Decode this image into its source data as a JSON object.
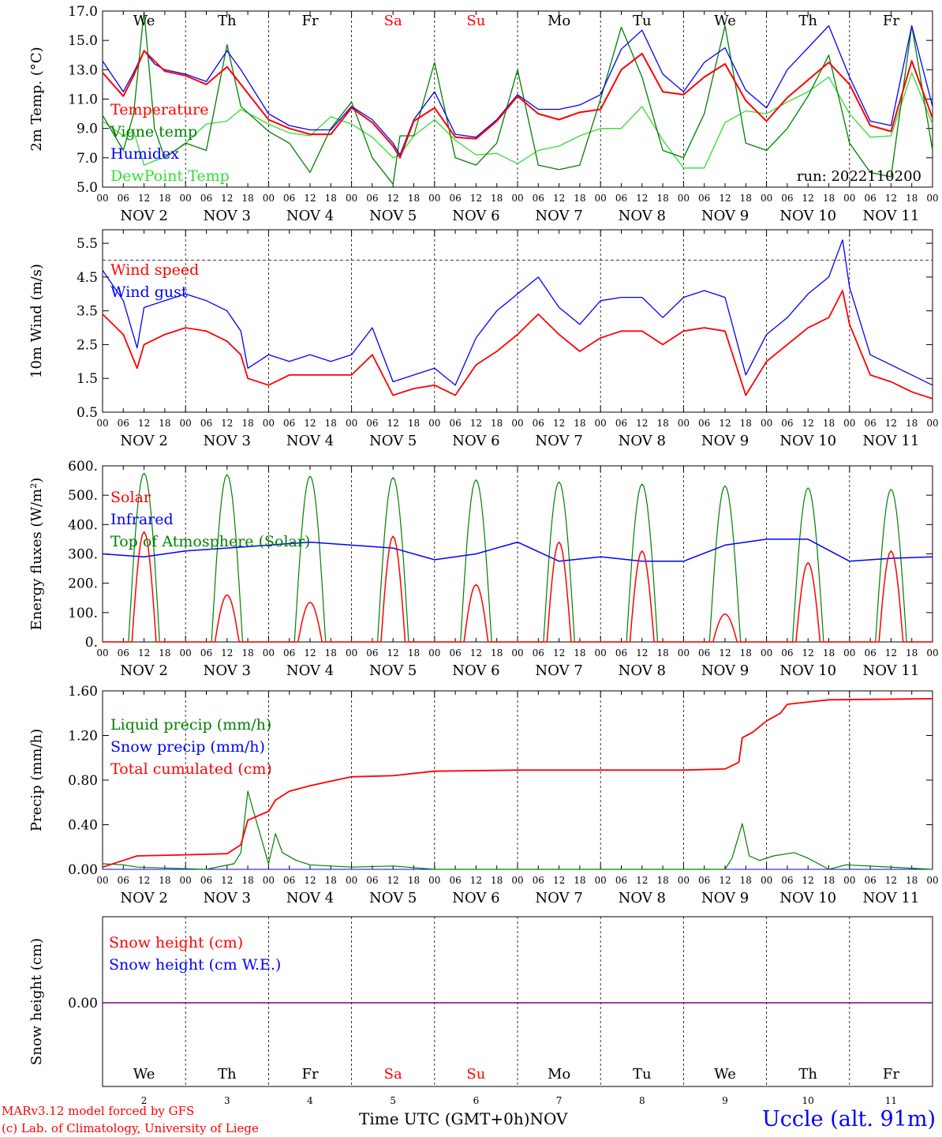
{
  "colors": {
    "red": "#ff0000",
    "blue": "#0000ff",
    "green": "#008000",
    "lightgreen": "#33dd33",
    "darkgreen": "#006400",
    "purple": "#800080",
    "grid": "#000000"
  },
  "run_label": "run: 2022110200",
  "day_letters": [
    {
      "label": "We",
      "color": "#000000"
    },
    {
      "label": "Th",
      "color": "#000000"
    },
    {
      "label": "Fr",
      "color": "#000000"
    },
    {
      "label": "Sa",
      "color": "#ff0000"
    },
    {
      "label": "Su",
      "color": "#ff0000"
    },
    {
      "label": "Mo",
      "color": "#000000"
    },
    {
      "label": "Tu",
      "color": "#000000"
    },
    {
      "label": "We",
      "color": "#000000"
    },
    {
      "label": "Th",
      "color": "#000000"
    },
    {
      "label": "Fr",
      "color": "#000000"
    }
  ],
  "date_labels": [
    "NOV  2",
    "NOV  3",
    "NOV  4",
    "NOV  5",
    "NOV  6",
    "NOV  7",
    "NOV  8",
    "NOV  9",
    "NOV 10",
    "NOV 11"
  ],
  "hour_ticks": [
    "00",
    "06",
    "12",
    "18"
  ],
  "bottom_day_numbers": [
    "2",
    "3",
    "4",
    "5",
    "6",
    "7",
    "8",
    "9",
    "10",
    "11"
  ],
  "bottom_month": "NOV",
  "footer": {
    "model": "MARv3.12 model forced by GFS",
    "lab": "(c) Lab. of Climatology, University of Liege",
    "xlabel": "Time UTC (GMT+0h)",
    "station": "Uccle (alt. 91m)"
  },
  "chart_data": [
    {
      "type": "line",
      "ylabel": "2m Temp. (°C)",
      "ylim": [
        5,
        17
      ],
      "yticks": [
        "5.0",
        "7.0",
        "9.0",
        "11.0",
        "13.0",
        "15.0",
        "17.0"
      ],
      "x_unit": "hours since NOV 2 00 UTC",
      "xlim": [
        0,
        240
      ],
      "series": [
        {
          "name": "Temperature",
          "color": "#ff0000",
          "x": [
            0,
            6,
            9,
            12,
            15,
            18,
            24,
            30,
            36,
            40,
            48,
            54,
            60,
            66,
            72,
            78,
            84,
            86,
            90,
            96,
            102,
            108,
            114,
            120,
            126,
            132,
            138,
            144,
            150,
            156,
            162,
            168,
            174,
            180,
            186,
            192,
            198,
            204,
            210,
            216,
            222,
            228,
            234,
            240
          ],
          "y": [
            12.8,
            11.2,
            12.6,
            14.3,
            13.6,
            12.9,
            12.6,
            12.0,
            13.2,
            12.0,
            9.6,
            9.0,
            8.6,
            8.6,
            10.4,
            9.4,
            7.8,
            7.0,
            9.5,
            10.4,
            8.4,
            8.3,
            9.5,
            11.2,
            10.0,
            9.6,
            10.1,
            10.3,
            13.0,
            14.1,
            11.5,
            11.3,
            12.5,
            13.4,
            10.9,
            9.5,
            11.1,
            12.3,
            13.5,
            12.0,
            9.2,
            8.8,
            13.6,
            9.7
          ]
        },
        {
          "name": "Vigne temp",
          "color": "#008000",
          "x": [
            0,
            6,
            9,
            12,
            15,
            18,
            24,
            30,
            36,
            40,
            48,
            54,
            60,
            66,
            72,
            78,
            84,
            86,
            90,
            96,
            102,
            108,
            114,
            120,
            126,
            132,
            138,
            144,
            150,
            156,
            162,
            168,
            174,
            180,
            186,
            192,
            198,
            204,
            210,
            216,
            222,
            228,
            234,
            240
          ],
          "y": [
            9.9,
            7.5,
            10.0,
            17.0,
            9.0,
            7.0,
            8.0,
            7.5,
            14.7,
            10.5,
            8.8,
            8.0,
            6.0,
            9.0,
            10.8,
            7.0,
            5.2,
            8.5,
            8.5,
            13.5,
            7.0,
            6.5,
            8.0,
            13.0,
            6.5,
            6.2,
            6.5,
            11.0,
            15.9,
            12.5,
            7.5,
            7.0,
            10.0,
            16.0,
            8.0,
            7.5,
            9.0,
            11.2,
            14.0,
            8.0,
            6.0,
            5.7,
            16.0,
            7.5
          ]
        },
        {
          "name": "Humidex",
          "color": "#0000ff",
          "x": [
            0,
            6,
            9,
            12,
            15,
            18,
            24,
            30,
            36,
            40,
            48,
            54,
            60,
            66,
            72,
            78,
            84,
            86,
            90,
            96,
            102,
            108,
            114,
            120,
            126,
            132,
            138,
            144,
            150,
            156,
            162,
            168,
            174,
            180,
            186,
            192,
            198,
            204,
            210,
            216,
            222,
            228,
            234,
            240
          ],
          "y": [
            13.6,
            11.5,
            12.8,
            14.3,
            13.4,
            13.0,
            12.7,
            12.2,
            14.3,
            13.0,
            10.0,
            9.2,
            8.9,
            8.9,
            10.5,
            9.6,
            8.0,
            7.2,
            9.6,
            11.5,
            8.6,
            8.4,
            9.6,
            11.3,
            10.3,
            10.3,
            10.6,
            11.3,
            14.4,
            15.7,
            12.7,
            11.5,
            13.5,
            14.5,
            11.6,
            10.4,
            13.0,
            14.5,
            16.0,
            12.5,
            9.5,
            9.2,
            16.0,
            10.5
          ]
        },
        {
          "name": "DewPoint Temp",
          "color": "#33dd33",
          "x": [
            0,
            6,
            9,
            12,
            15,
            18,
            24,
            30,
            36,
            40,
            48,
            54,
            60,
            66,
            72,
            78,
            84,
            86,
            90,
            96,
            102,
            108,
            114,
            120,
            126,
            132,
            138,
            144,
            150,
            156,
            162,
            168,
            174,
            180,
            186,
            192,
            198,
            204,
            210,
            216,
            222,
            228,
            234,
            240
          ],
          "y": [
            9.5,
            8.5,
            8.8,
            6.5,
            6.8,
            7.0,
            8.0,
            9.3,
            9.5,
            10.3,
            9.3,
            8.7,
            8.5,
            9.8,
            9.3,
            8.4,
            7.0,
            7.2,
            8.5,
            9.6,
            8.2,
            7.2,
            7.3,
            6.6,
            7.5,
            7.8,
            8.5,
            9.0,
            9.0,
            10.5,
            8.2,
            6.3,
            6.3,
            9.4,
            10.2,
            10.0,
            10.8,
            11.5,
            12.5,
            10.0,
            8.4,
            8.5,
            12.8,
            9.3
          ]
        }
      ]
    },
    {
      "type": "line",
      "ylabel": "10m Wind (m/s)",
      "ylim": [
        0.5,
        5.9
      ],
      "yticks": [
        "0.5",
        "1.5",
        "2.5",
        "3.5",
        "4.5",
        "5.5"
      ],
      "xlim": [
        0,
        240
      ],
      "reference_line": 5.0,
      "series": [
        {
          "name": "Wind speed",
          "color": "#ff0000",
          "x": [
            0,
            6,
            10,
            12,
            18,
            24,
            30,
            36,
            40,
            42,
            48,
            54,
            60,
            66,
            72,
            78,
            84,
            90,
            96,
            102,
            108,
            114,
            120,
            126,
            132,
            138,
            144,
            150,
            156,
            162,
            168,
            174,
            180,
            186,
            192,
            198,
            204,
            210,
            214,
            216,
            222,
            228,
            234,
            240
          ],
          "y": [
            3.4,
            2.8,
            1.8,
            2.5,
            2.8,
            3.0,
            2.9,
            2.6,
            2.2,
            1.5,
            1.3,
            1.6,
            1.6,
            1.6,
            1.6,
            2.2,
            1.0,
            1.2,
            1.3,
            1.0,
            1.9,
            2.3,
            2.8,
            3.4,
            2.8,
            2.3,
            2.7,
            2.9,
            2.9,
            2.5,
            2.9,
            3.0,
            2.9,
            1.0,
            2.0,
            2.5,
            3.0,
            3.3,
            4.1,
            3.1,
            1.6,
            1.4,
            1.1,
            0.9
          ]
        },
        {
          "name": "Wind gust",
          "color": "#0000ff",
          "x": [
            0,
            6,
            10,
            12,
            18,
            24,
            30,
            36,
            40,
            42,
            48,
            54,
            60,
            66,
            72,
            78,
            84,
            90,
            96,
            102,
            108,
            114,
            120,
            126,
            132,
            138,
            144,
            150,
            156,
            162,
            168,
            174,
            180,
            186,
            192,
            198,
            204,
            210,
            214,
            216,
            222,
            228,
            234,
            240
          ],
          "y": [
            4.7,
            3.8,
            2.4,
            3.6,
            3.8,
            4.0,
            3.8,
            3.5,
            2.9,
            1.8,
            2.2,
            2.0,
            2.2,
            2.0,
            2.2,
            3.0,
            1.4,
            1.6,
            1.8,
            1.3,
            2.7,
            3.5,
            4.0,
            4.5,
            3.6,
            3.1,
            3.8,
            3.9,
            3.9,
            3.3,
            3.9,
            4.1,
            3.9,
            1.6,
            2.8,
            3.3,
            4.0,
            4.5,
            5.6,
            4.2,
            2.2,
            1.9,
            1.6,
            1.3
          ]
        }
      ]
    },
    {
      "type": "line",
      "ylabel": "Energy fluxes (W/m²)",
      "ylim": [
        0,
        600
      ],
      "yticks": [
        "0.",
        "100.",
        "200.",
        "300.",
        "400.",
        "500.",
        "600."
      ],
      "xlim": [
        0,
        240
      ],
      "series": [
        {
          "name": "Solar",
          "color": "#ff0000",
          "peaks": [
            375,
            160,
            135,
            360,
            195,
            340,
            310,
            95,
            270,
            310
          ]
        },
        {
          "name": "Infrared",
          "color": "#0000ff",
          "x": [
            0,
            12,
            24,
            36,
            48,
            60,
            72,
            84,
            96,
            108,
            120,
            132,
            144,
            156,
            168,
            180,
            192,
            204,
            216,
            228,
            240
          ],
          "y": [
            300,
            290,
            310,
            320,
            330,
            340,
            330,
            320,
            280,
            300,
            340,
            275,
            290,
            275,
            275,
            330,
            350,
            350,
            275,
            285,
            290
          ]
        },
        {
          "name": "Top of Atmosphere (Solar)",
          "color": "#008000",
          "peaks": [
            575,
            570,
            565,
            560,
            552,
            545,
            538,
            532,
            525,
            520
          ]
        }
      ]
    },
    {
      "type": "line",
      "ylabel": "Precip (mm/h)",
      "ylim": [
        0,
        1.6
      ],
      "yticks": [
        "0.00",
        "0.40",
        "0.80",
        "1.20",
        "1.60"
      ],
      "xlim": [
        0,
        240
      ],
      "series": [
        {
          "name": "Liquid precip (mm/h)",
          "color": "#008000",
          "x": [
            0,
            6,
            10,
            30,
            38,
            40,
            42,
            48,
            50,
            52,
            56,
            60,
            66,
            72,
            84,
            96,
            120,
            150,
            180,
            182,
            185,
            187,
            190,
            194,
            200,
            204,
            210,
            215,
            240
          ],
          "y": [
            0.05,
            0.04,
            0.02,
            0.0,
            0.05,
            0.15,
            0.7,
            0.05,
            0.32,
            0.15,
            0.08,
            0.04,
            0.03,
            0.02,
            0.03,
            0.0,
            0.0,
            0.0,
            0.0,
            0.1,
            0.41,
            0.12,
            0.08,
            0.12,
            0.15,
            0.1,
            0.0,
            0.04,
            0.0
          ]
        },
        {
          "name": "Snow precip (mm/h)",
          "color": "#0000ff",
          "x": [
            0,
            240
          ],
          "y": [
            0,
            0
          ]
        },
        {
          "name": "Total cumulated (cm)",
          "color": "#ff0000",
          "x": [
            0,
            6,
            10,
            24,
            36,
            40,
            42,
            48,
            50,
            54,
            60,
            66,
            72,
            84,
            96,
            120,
            144,
            168,
            180,
            184,
            185,
            188,
            192,
            196,
            198,
            204,
            210,
            240
          ],
          "y": [
            0.02,
            0.08,
            0.12,
            0.13,
            0.14,
            0.22,
            0.44,
            0.52,
            0.62,
            0.7,
            0.75,
            0.79,
            0.83,
            0.84,
            0.88,
            0.89,
            0.89,
            0.89,
            0.9,
            0.96,
            1.18,
            1.23,
            1.33,
            1.4,
            1.48,
            1.5,
            1.52,
            1.53
          ]
        }
      ]
    },
    {
      "type": "line",
      "ylabel": "Snow height (cm)",
      "yticks": [
        "0.00"
      ],
      "xlim": [
        0,
        240
      ],
      "series": [
        {
          "name": "Snow height (cm)",
          "color": "#ff0000",
          "x": [
            0,
            240
          ],
          "y": [
            0,
            0
          ]
        },
        {
          "name": "Snow height (cm W.E.)",
          "color": "#0000ff",
          "x": [
            0,
            240
          ],
          "y": [
            0,
            0
          ]
        }
      ]
    }
  ]
}
